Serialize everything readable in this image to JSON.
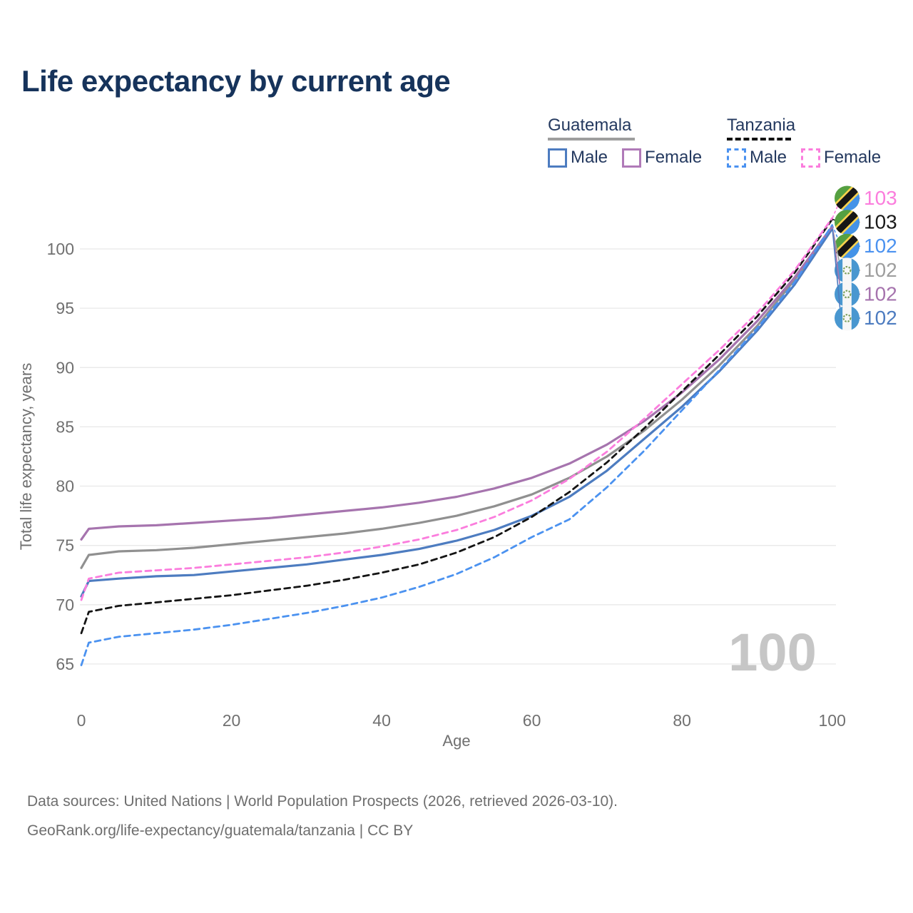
{
  "title": "Life expectancy by current age",
  "legend": {
    "groups": [
      {
        "country": "Guatemala",
        "line_style": "solid",
        "underline_color": "#9e9e9e",
        "items": [
          {
            "label": "Male",
            "color": "#4d7cc0",
            "dashed": false
          },
          {
            "label": "Female",
            "color": "#b07ab8",
            "dashed": false
          }
        ]
      },
      {
        "country": "Tanzania",
        "line_style": "dashed",
        "underline_color": "#111111",
        "items": [
          {
            "label": "Male",
            "color": "#4b92f0",
            "dashed": true
          },
          {
            "label": "Female",
            "color": "#fb7ddd",
            "dashed": true
          }
        ]
      }
    ]
  },
  "chart_data": {
    "type": "line",
    "title": "Life expectancy by current age",
    "xlabel": "Age",
    "ylabel": "Total life expectancy, years",
    "x_ticks": [
      0,
      20,
      40,
      60,
      80,
      100
    ],
    "y_ticks": [
      65,
      70,
      75,
      80,
      85,
      90,
      95,
      100
    ],
    "xlim": [
      0,
      100
    ],
    "ylim": [
      63.5,
      103.5
    ],
    "grid": "horizontal",
    "legend_position": "top-right",
    "hover_age": "100",
    "x": [
      0,
      1,
      5,
      10,
      15,
      20,
      25,
      30,
      35,
      40,
      45,
      50,
      55,
      60,
      65,
      70,
      75,
      80,
      85,
      90,
      95,
      100
    ],
    "series": [
      {
        "id": "guatemala",
        "name": "Guatemala",
        "color": "#909090",
        "dashed": false,
        "x": [
          0,
          1,
          5,
          10,
          15,
          20,
          25,
          30,
          35,
          40,
          45,
          50,
          55,
          60,
          65,
          70,
          75,
          80,
          85,
          90,
          95,
          100
        ],
        "y": [
          73.1,
          74.2,
          74.5,
          74.6,
          74.8,
          75.1,
          75.4,
          75.7,
          76.0,
          76.4,
          76.9,
          77.5,
          78.3,
          79.3,
          80.7,
          82.5,
          84.7,
          87.3,
          90.2,
          93.5,
          97.4,
          101.8
        ]
      },
      {
        "id": "guatemala-male",
        "name": "Guatemala Male",
        "color": "#4d7cc0",
        "dashed": false,
        "x": [
          0,
          1,
          5,
          10,
          15,
          20,
          25,
          30,
          35,
          40,
          45,
          50,
          55,
          60,
          65,
          70,
          75,
          80,
          85,
          90,
          95,
          100
        ],
        "y": [
          70.7,
          72.0,
          72.2,
          72.4,
          72.5,
          72.8,
          73.1,
          73.4,
          73.8,
          74.2,
          74.7,
          75.4,
          76.3,
          77.5,
          79.1,
          81.3,
          84.0,
          86.7,
          89.7,
          93.1,
          97.0,
          101.7
        ]
      },
      {
        "id": "guatemala-female",
        "name": "Guatemala Female",
        "color": "#a674ae",
        "dashed": false,
        "x": [
          0,
          1,
          5,
          10,
          15,
          20,
          25,
          30,
          35,
          40,
          45,
          50,
          55,
          60,
          65,
          70,
          75,
          80,
          85,
          90,
          95,
          100
        ],
        "y": [
          75.5,
          76.4,
          76.6,
          76.7,
          76.9,
          77.1,
          77.3,
          77.6,
          77.9,
          78.2,
          78.6,
          79.1,
          79.8,
          80.7,
          81.9,
          83.5,
          85.5,
          87.9,
          90.7,
          93.9,
          97.6,
          101.9
        ]
      },
      {
        "id": "tanzania",
        "name": "Tanzania",
        "color": "#141414",
        "dashed": true,
        "x": [
          0,
          1,
          5,
          10,
          15,
          20,
          25,
          30,
          35,
          40,
          45,
          50,
          55,
          60,
          65,
          70,
          75,
          80,
          85,
          90,
          95,
          100
        ],
        "y": [
          67.6,
          69.4,
          69.9,
          70.2,
          70.5,
          70.8,
          71.2,
          71.6,
          72.1,
          72.7,
          73.4,
          74.4,
          75.7,
          77.4,
          79.5,
          82.0,
          84.9,
          88.0,
          91.1,
          94.3,
          98.0,
          102.5
        ]
      },
      {
        "id": "tanzania-male",
        "name": "Tanzania Male",
        "color": "#4b92f0",
        "dashed": true,
        "x": [
          0,
          1,
          5,
          10,
          15,
          20,
          25,
          30,
          35,
          40,
          45,
          50,
          55,
          60,
          65,
          70,
          75,
          80,
          85,
          90,
          95,
          100
        ],
        "y": [
          64.9,
          66.8,
          67.3,
          67.6,
          67.9,
          68.3,
          68.8,
          69.3,
          69.9,
          70.6,
          71.5,
          72.6,
          74.0,
          75.7,
          77.2,
          79.9,
          83.0,
          86.4,
          89.8,
          93.3,
          97.2,
          102.0
        ]
      },
      {
        "id": "tanzania-female",
        "name": "Tanzania Female",
        "color": "#fb7ddd",
        "dashed": true,
        "x": [
          0,
          1,
          5,
          10,
          15,
          20,
          25,
          30,
          35,
          40,
          45,
          50,
          55,
          60,
          65,
          70,
          75,
          80,
          85,
          90,
          95,
          100
        ],
        "y": [
          70.4,
          72.2,
          72.7,
          72.9,
          73.1,
          73.4,
          73.7,
          74.0,
          74.4,
          74.9,
          75.5,
          76.3,
          77.4,
          78.8,
          80.6,
          82.9,
          85.7,
          88.6,
          91.5,
          94.6,
          98.2,
          102.6
        ]
      }
    ],
    "end_labels": [
      {
        "series": "tanzania-female",
        "flag": "tanzania",
        "value": "103",
        "color": "#fb7ddd"
      },
      {
        "series": "tanzania",
        "flag": "tanzania",
        "value": "103",
        "color": "#1a1a1a"
      },
      {
        "series": "tanzania-male",
        "flag": "tanzania",
        "value": "102",
        "color": "#4b92f0"
      },
      {
        "series": "guatemala",
        "flag": "guatemala",
        "value": "102",
        "color": "#9e9e9e"
      },
      {
        "series": "guatemala-female",
        "flag": "guatemala",
        "value": "102",
        "color": "#a674ae"
      },
      {
        "series": "guatemala-male",
        "flag": "guatemala",
        "value": "102",
        "color": "#4d7cc0"
      }
    ]
  },
  "footer": {
    "line1": "Data sources: United Nations | World Population Prospects (2026, retrieved 2026-03-10).",
    "line2": "GeoRank.org/life-expectancy/guatemala/tanzania | CC BY"
  }
}
